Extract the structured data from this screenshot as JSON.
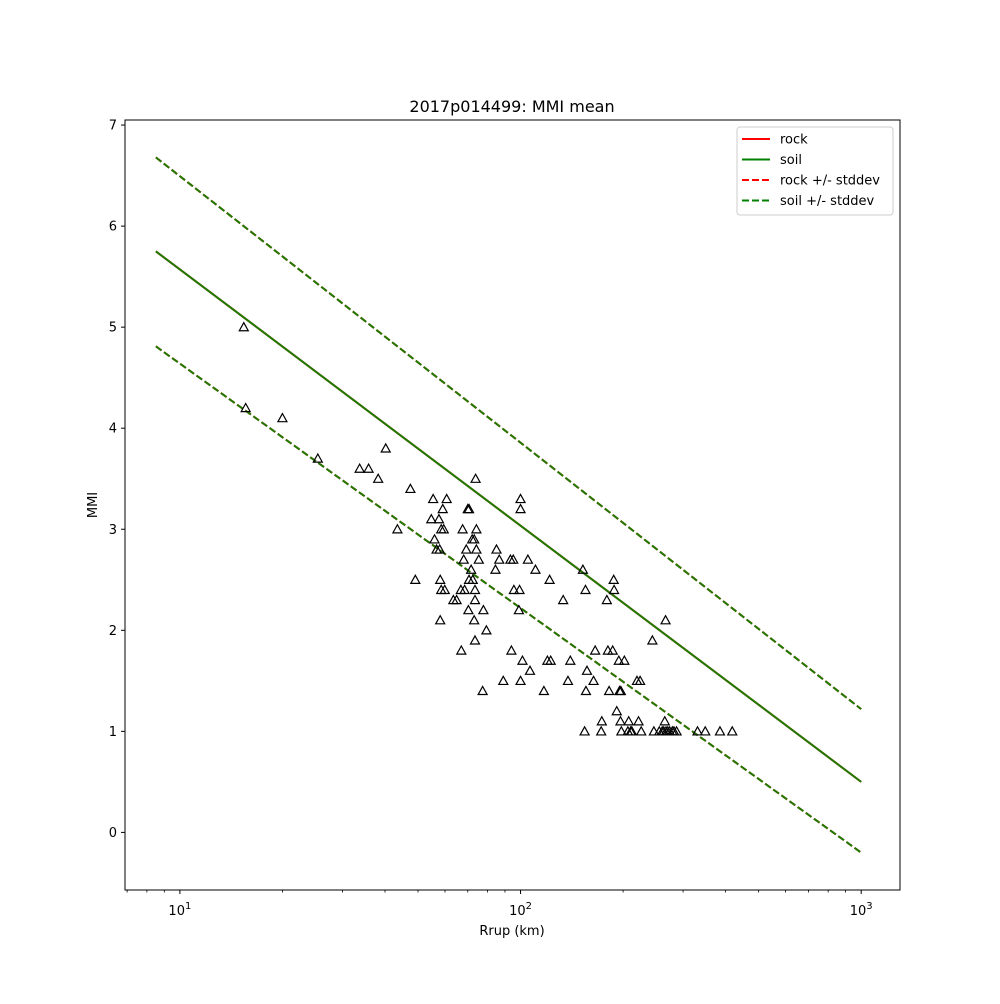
{
  "chart_data": {
    "type": "scatter",
    "title": "2017p014499: MMI mean",
    "xlabel": "Rrup (km)",
    "ylabel": "MMI",
    "xscale": "log",
    "xlim": [
      6.9,
      1300
    ],
    "ylim": [
      -0.57,
      7.05
    ],
    "x_ticks": [
      {
        "value": 10,
        "base": "10",
        "exp": "1"
      },
      {
        "value": 100,
        "base": "10",
        "exp": "2"
      },
      {
        "value": 1000,
        "base": "10",
        "exp": "3"
      }
    ],
    "y_ticks": [
      0,
      1,
      2,
      3,
      4,
      5,
      6,
      7
    ],
    "legend": {
      "placement": "top-right",
      "entries": [
        {
          "label": "rock",
          "color": "#ff0000",
          "style": "solid"
        },
        {
          "label": "soil",
          "color": "#008000",
          "style": "solid"
        },
        {
          "label": "rock +/- stddev",
          "color": "#ff0000",
          "style": "dashed"
        },
        {
          "label": "soil +/- stddev",
          "color": "#008000",
          "style": "dashed"
        }
      ]
    },
    "series": [
      {
        "name": "rock",
        "style": "solid",
        "color": "#ff0000",
        "x": [
          8.5,
          1000
        ],
        "y": [
          5.75,
          0.5
        ]
      },
      {
        "name": "rock +/- stddev",
        "style": "dashed",
        "color": "#ff0000",
        "x": [
          8.5,
          1000
        ],
        "y": [
          6.68,
          1.22
        ]
      },
      {
        "name": "rock +/- stddev",
        "style": "dashed",
        "color": "#ff0000",
        "x": [
          8.5,
          1000
        ],
        "y": [
          4.81,
          -0.2
        ]
      },
      {
        "name": "soil",
        "style": "solid",
        "color": "#1e7a00",
        "x": [
          8.5,
          1000
        ],
        "y": [
          5.75,
          0.5
        ]
      },
      {
        "name": "soil +/- stddev",
        "style": "dashed",
        "color": "#1e7a00",
        "x": [
          8.5,
          1000
        ],
        "y": [
          6.68,
          1.22
        ]
      },
      {
        "name": "soil +/- stddev",
        "style": "dashed",
        "color": "#1e7a00",
        "x": [
          8.5,
          1000
        ],
        "y": [
          4.81,
          -0.2
        ]
      }
    ],
    "observations": [
      [
        15.4,
        5.0
      ],
      [
        15.6,
        4.2
      ],
      [
        20.0,
        4.1
      ],
      [
        25.4,
        3.7
      ],
      [
        33.7,
        3.6
      ],
      [
        35.8,
        3.6
      ],
      [
        38.2,
        3.5
      ],
      [
        40.2,
        3.8
      ],
      [
        43.5,
        3.0
      ],
      [
        47.5,
        3.4
      ],
      [
        49.1,
        2.5
      ],
      [
        55.4,
        3.3
      ],
      [
        54.7,
        3.1
      ],
      [
        55.9,
        2.9
      ],
      [
        56.7,
        2.8
      ],
      [
        57.6,
        3.1
      ],
      [
        57.9,
        2.8
      ],
      [
        58.5,
        3.0
      ],
      [
        59.1,
        3.2
      ],
      [
        58.1,
        2.5
      ],
      [
        58.5,
        2.4
      ],
      [
        59.5,
        3.0
      ],
      [
        59.9,
        2.4
      ],
      [
        60.7,
        3.3
      ],
      [
        58.1,
        2.1
      ],
      [
        63.5,
        2.3
      ],
      [
        64.9,
        2.3
      ],
      [
        66.8,
        2.4
      ],
      [
        68.1,
        2.7
      ],
      [
        67.6,
        3.0
      ],
      [
        68.5,
        2.4
      ],
      [
        69.3,
        2.8
      ],
      [
        70.0,
        3.2
      ],
      [
        70.6,
        2.5
      ],
      [
        70.6,
        3.2
      ],
      [
        70.3,
        2.2
      ],
      [
        71.6,
        2.6
      ],
      [
        72.1,
        2.9
      ],
      [
        72.4,
        2.5
      ],
      [
        73.1,
        2.9
      ],
      [
        73.5,
        2.4
      ],
      [
        73.5,
        2.3
      ],
      [
        73.8,
        3.5
      ],
      [
        74.2,
        2.8
      ],
      [
        74.2,
        3.0
      ],
      [
        75.4,
        2.7
      ],
      [
        73.1,
        2.1
      ],
      [
        73.5,
        1.9
      ],
      [
        77.8,
        2.2
      ],
      [
        79.4,
        2.0
      ],
      [
        77.4,
        1.4
      ],
      [
        67.0,
        1.8
      ],
      [
        85.0,
        2.8
      ],
      [
        84.4,
        2.6
      ],
      [
        86.6,
        2.7
      ],
      [
        89.0,
        1.5
      ],
      [
        93.4,
        2.7
      ],
      [
        95.2,
        2.7
      ],
      [
        95.6,
        2.4
      ],
      [
        94.0,
        1.8
      ],
      [
        99.3,
        2.4
      ],
      [
        98.9,
        2.2
      ],
      [
        100.0,
        3.3
      ],
      [
        100.0,
        3.2
      ],
      [
        101.3,
        1.7
      ],
      [
        100.0,
        1.5
      ],
      [
        105.1,
        2.7
      ],
      [
        106.6,
        1.6
      ],
      [
        110.6,
        2.6
      ],
      [
        117.1,
        1.4
      ],
      [
        119.9,
        1.7
      ],
      [
        122.6,
        1.7
      ],
      [
        121.7,
        2.5
      ],
      [
        133.4,
        2.3
      ],
      [
        137.8,
        1.5
      ],
      [
        140.0,
        1.7
      ],
      [
        152.4,
        2.6
      ],
      [
        155.1,
        2.4
      ],
      [
        154.2,
        1.0
      ],
      [
        155.6,
        1.4
      ],
      [
        156.7,
        1.6
      ],
      [
        163.8,
        1.5
      ],
      [
        165.6,
        1.8
      ],
      [
        173.2,
        1.1
      ],
      [
        172.5,
        1.0
      ],
      [
        179.2,
        2.3
      ],
      [
        180.5,
        1.8
      ],
      [
        182.0,
        1.4
      ],
      [
        186.4,
        1.8
      ],
      [
        187.7,
        2.5
      ],
      [
        188.2,
        2.4
      ],
      [
        191.6,
        1.2
      ],
      [
        194.3,
        1.7
      ],
      [
        195.3,
        1.4
      ],
      [
        196.5,
        1.1
      ],
      [
        197.0,
        1.4
      ],
      [
        197.7,
        1.0
      ],
      [
        201.7,
        1.7
      ],
      [
        206.6,
        1.0
      ],
      [
        207.7,
        1.1
      ],
      [
        210.6,
        1.0
      ],
      [
        212.2,
        1.0
      ],
      [
        219.7,
        1.5
      ],
      [
        222.0,
        1.1
      ],
      [
        224.4,
        1.5
      ],
      [
        226.1,
        1.0
      ],
      [
        243.8,
        1.9
      ],
      [
        246.3,
        1.0
      ],
      [
        255.5,
        1.0
      ],
      [
        260.6,
        1.0
      ],
      [
        263.3,
        1.0
      ],
      [
        265.1,
        1.1
      ],
      [
        266.5,
        2.1
      ],
      [
        267.4,
        1.0
      ],
      [
        270.6,
        1.0
      ],
      [
        274.1,
        1.0
      ],
      [
        279.0,
        1.0
      ],
      [
        282.1,
        1.0
      ],
      [
        287.1,
        1.0
      ],
      [
        330.8,
        1.0
      ],
      [
        348.5,
        1.0
      ],
      [
        385.0,
        1.0
      ],
      [
        418.3,
        1.0
      ]
    ]
  }
}
